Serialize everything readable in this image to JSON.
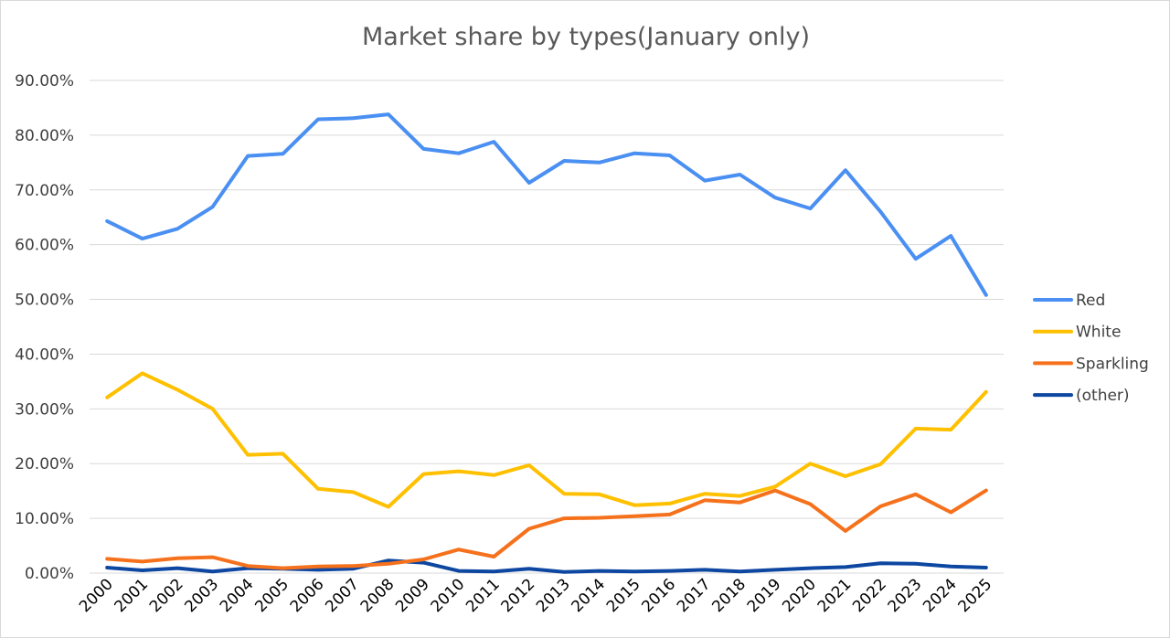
{
  "chart_data": {
    "type": "line",
    "title": "Market share by types(January only)",
    "xlabel": "",
    "ylabel": "",
    "ylim": [
      0,
      90
    ],
    "y_ticks": [
      0,
      10,
      20,
      30,
      40,
      50,
      60,
      70,
      80,
      90
    ],
    "y_tick_labels": [
      "0.00%",
      "10.00%",
      "20.00%",
      "30.00%",
      "40.00%",
      "50.00%",
      "60.00%",
      "70.00%",
      "80.00%",
      "90.00%"
    ],
    "grid": true,
    "legend_position": "right",
    "categories": [
      "2000",
      "2001",
      "2002",
      "2003",
      "2004",
      "2005",
      "2006",
      "2007",
      "2008",
      "2009",
      "2010",
      "2011",
      "2012",
      "2013",
      "2014",
      "2015",
      "2016",
      "2017",
      "2018",
      "2019",
      "2020",
      "2021",
      "2022",
      "2023",
      "2024",
      "2025"
    ],
    "series": [
      {
        "name": "Red",
        "color": "#4a8ff2",
        "values": [
          64.3,
          61.1,
          62.9,
          66.9,
          76.2,
          76.6,
          82.9,
          83.1,
          83.8,
          77.5,
          76.7,
          78.8,
          71.3,
          75.3,
          75.0,
          76.7,
          76.3,
          71.7,
          72.8,
          68.6,
          66.6,
          73.6,
          66.0,
          57.4,
          61.6,
          50.8
        ]
      },
      {
        "name": "White",
        "color": "#ffc000",
        "values": [
          32.1,
          36.5,
          33.5,
          30.0,
          21.6,
          21.8,
          15.4,
          14.8,
          12.1,
          18.1,
          18.6,
          17.9,
          19.7,
          14.5,
          14.4,
          12.4,
          12.7,
          14.5,
          14.1,
          15.8,
          20.0,
          17.7,
          19.9,
          26.4,
          26.2,
          33.1
        ]
      },
      {
        "name": "Sparkling",
        "color": "#f5711c",
        "values": [
          2.6,
          2.1,
          2.7,
          2.9,
          1.3,
          0.9,
          1.2,
          1.3,
          1.7,
          2.5,
          4.3,
          3.0,
          8.1,
          10.0,
          10.1,
          10.4,
          10.7,
          13.3,
          12.9,
          15.1,
          12.6,
          7.7,
          12.2,
          14.4,
          11.1,
          15.1
        ]
      },
      {
        "name": "(other)",
        "color": "#0d47a1",
        "values": [
          1.0,
          0.5,
          0.9,
          0.3,
          0.9,
          0.8,
          0.6,
          0.8,
          2.3,
          1.9,
          0.4,
          0.3,
          0.8,
          0.2,
          0.4,
          0.3,
          0.4,
          0.6,
          0.3,
          0.6,
          0.9,
          1.1,
          1.8,
          1.7,
          1.2,
          1.0
        ]
      }
    ]
  }
}
